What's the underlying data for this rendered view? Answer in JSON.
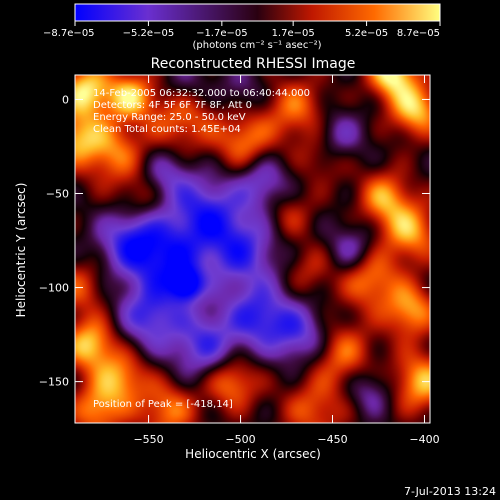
{
  "chart_data": {
    "type": "heatmap",
    "title": "Reconstructed RHESSI Image",
    "xlabel": "Heliocentric X (arcsec)",
    "ylabel": "Heliocentric Y (arcsec)",
    "xlim": [
      -590,
      -397
    ],
    "ylim": [
      -172,
      13
    ],
    "x_ticks": [
      -550,
      -500,
      -450,
      -400
    ],
    "x_tick_labels": [
      "−550",
      "−500",
      "−450",
      "−400"
    ],
    "y_ticks": [
      0,
      -50,
      -100,
      -150
    ],
    "y_tick_labels": [
      "0",
      "−50",
      "−100",
      "−150"
    ],
    "colorbar": {
      "min": -8.7e-05,
      "max": 8.7e-05,
      "tick_values": [
        -8.7e-05,
        -5.2e-05,
        -1.7e-05,
        1.7e-05,
        5.2e-05,
        8.7e-05
      ],
      "tick_labels": [
        "−8.7e−05",
        "−5.2e−05",
        "−1.7e−05",
        "1.7e−05",
        "5.2e−05",
        "8.7e−05"
      ],
      "units_label": "(photons cm⁻² s⁻¹ asec⁻²)",
      "colors": [
        "#0000ff",
        "#6a2fd0",
        "#2a0010",
        "#c01800",
        "#ff6a00",
        "#ffff80"
      ]
    },
    "annotations": [
      "14-Feb-2005 06:32:32.000 to 06:40:44.000",
      "Detectors: 4F 5F 6F 7F 8F, Att 0",
      "Energy Range: 25.0 - 50.0 keV",
      "Clean     Total counts: 1.45E+04"
    ],
    "peak_label": "Position of Peak = [-418,14]",
    "peak": [
      -418,
      14
    ],
    "timestamp": "7-Jul-2013 13:24",
    "blobs": [
      {
        "x": -584,
        "y": 5,
        "v": 8e-05,
        "s": 10
      },
      {
        "x": -560,
        "y": 2,
        "v": 7e-05,
        "s": 9
      },
      {
        "x": -570,
        "y": -28,
        "v": 5.5e-05,
        "s": 12
      },
      {
        "x": -590,
        "y": -20,
        "v": 6e-05,
        "s": 10
      },
      {
        "x": -532,
        "y": -10,
        "v": 5e-05,
        "s": 13
      },
      {
        "x": -498,
        "y": -22,
        "v": 5.5e-05,
        "s": 11
      },
      {
        "x": -470,
        "y": -5,
        "v": 5e-05,
        "s": 12
      },
      {
        "x": -455,
        "y": -30,
        "v": 3.5e-05,
        "s": 10
      },
      {
        "x": -418,
        "y": 14,
        "v": 8.7e-05,
        "s": 9
      },
      {
        "x": -405,
        "y": -5,
        "v": 7.5e-05,
        "s": 10
      },
      {
        "x": -422,
        "y": -52,
        "v": 6e-05,
        "s": 10
      },
      {
        "x": -408,
        "y": -70,
        "v": 6.5e-05,
        "s": 11
      },
      {
        "x": -430,
        "y": -95,
        "v": 6e-05,
        "s": 11
      },
      {
        "x": -408,
        "y": -112,
        "v": 6.5e-05,
        "s": 10
      },
      {
        "x": -402,
        "y": -150,
        "v": 7e-05,
        "s": 11
      },
      {
        "x": -445,
        "y": -135,
        "v": 5e-05,
        "s": 12
      },
      {
        "x": -460,
        "y": -165,
        "v": 4.5e-05,
        "s": 12
      },
      {
        "x": -505,
        "y": -150,
        "v": 6e-05,
        "s": 10
      },
      {
        "x": -540,
        "y": -165,
        "v": 5.5e-05,
        "s": 11
      },
      {
        "x": -565,
        "y": -148,
        "v": 6e-05,
        "s": 10
      },
      {
        "x": -582,
        "y": -130,
        "v": 7.5e-05,
        "s": 10
      },
      {
        "x": -578,
        "y": -165,
        "v": 6e-05,
        "s": 10
      },
      {
        "x": -588,
        "y": -100,
        "v": 4e-05,
        "s": 10
      },
      {
        "x": -555,
        "y": -52,
        "v": 3e-05,
        "s": 9
      },
      {
        "x": -475,
        "y": -60,
        "v": 3.5e-05,
        "s": 10
      },
      {
        "x": -462,
        "y": -90,
        "v": 3e-05,
        "s": 10
      },
      {
        "x": -540,
        "y": -85,
        "v": -7e-05,
        "s": 14
      },
      {
        "x": -530,
        "y": -98,
        "v": -8.7e-05,
        "s": 6
      },
      {
        "x": -520,
        "y": -60,
        "v": -6.5e-05,
        "s": 13
      },
      {
        "x": -500,
        "y": -80,
        "v": -6.5e-05,
        "s": 14
      },
      {
        "x": -560,
        "y": -75,
        "v": -6.5e-05,
        "s": 12
      },
      {
        "x": -490,
        "y": -115,
        "v": -6.5e-05,
        "s": 12
      },
      {
        "x": -520,
        "y": -130,
        "v": -6e-05,
        "s": 13
      },
      {
        "x": -550,
        "y": -115,
        "v": -6e-05,
        "s": 12
      },
      {
        "x": -468,
        "y": -125,
        "v": -5.5e-05,
        "s": 11
      },
      {
        "x": -488,
        "y": -45,
        "v": -5e-05,
        "s": 11
      },
      {
        "x": -440,
        "y": -80,
        "v": -4e-05,
        "s": 10
      },
      {
        "x": -540,
        "y": -40,
        "v": -4e-05,
        "s": 10
      },
      {
        "x": -448,
        "y": -20,
        "v": -4.5e-05,
        "s": 10
      },
      {
        "x": -430,
        "y": -155,
        "v": -3.5e-05,
        "s": 9
      },
      {
        "x": -530,
        "y": 8,
        "v": -3e-05,
        "s": 9
      },
      {
        "x": -500,
        "y": 5,
        "v": -2.5e-05,
        "s": 9
      }
    ]
  }
}
